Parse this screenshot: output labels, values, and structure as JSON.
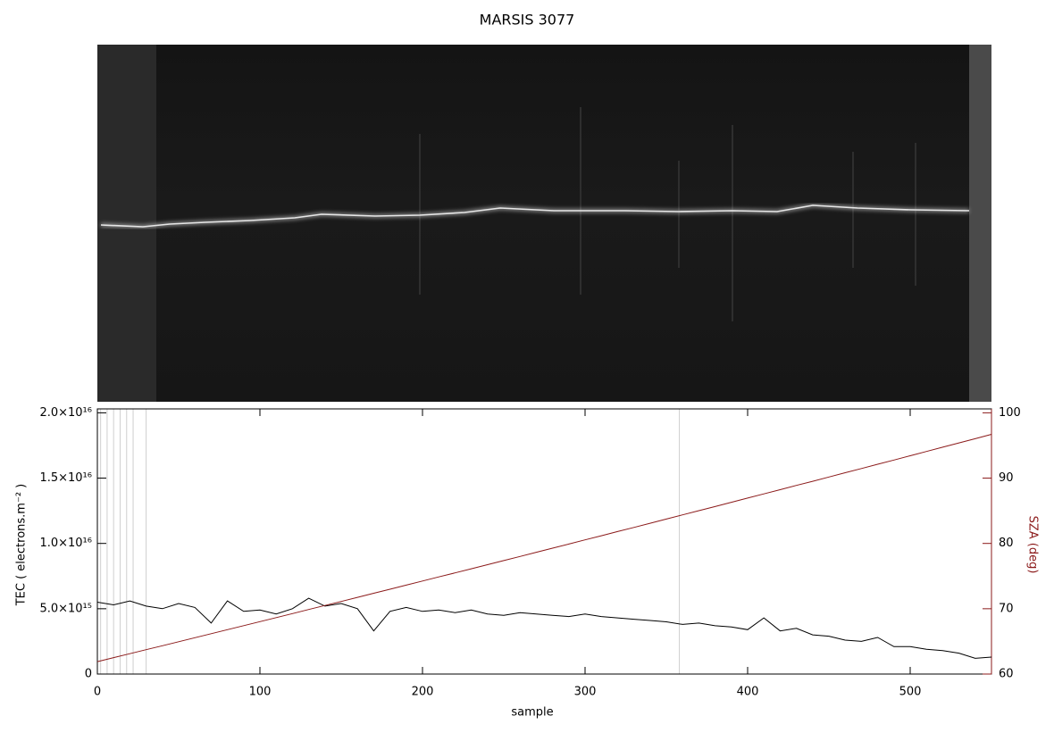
{
  "chart_data": {
    "type": "line",
    "title": "MARSIS 3077",
    "x_label": "sample",
    "y_label": "TEC ( electrons.m⁻² )",
    "y2_label": "SZA (deg)",
    "x": [
      0,
      10,
      20,
      30,
      40,
      50,
      60,
      70,
      80,
      90,
      100,
      110,
      120,
      130,
      140,
      150,
      160,
      170,
      180,
      190,
      200,
      210,
      220,
      230,
      240,
      250,
      260,
      270,
      280,
      290,
      300,
      310,
      320,
      330,
      340,
      350,
      360,
      370,
      380,
      390,
      400,
      410,
      420,
      430,
      440,
      450,
      460,
      470,
      480,
      490,
      500,
      510,
      520,
      530,
      540,
      550
    ],
    "series": [
      {
        "name": "TEC",
        "color": "#000000",
        "values": [
          5500000000000000.0,
          5300000000000000.0,
          5600000000000000.0,
          5200000000000000.0,
          5000000000000000.0,
          5400000000000000.0,
          5100000000000000.0,
          3900000000000000.0,
          5600000000000000.0,
          4800000000000000.0,
          4900000000000000.0,
          4600000000000000.0,
          5000000000000000.0,
          5800000000000000.0,
          5200000000000000.0,
          5400000000000000.0,
          5000000000000000.0,
          3300000000000000.0,
          4800000000000000.0,
          5100000000000000.0,
          4800000000000000.0,
          4900000000000000.0,
          4700000000000000.0,
          4900000000000000.0,
          4600000000000000.0,
          4500000000000000.0,
          4700000000000000.0,
          4600000000000000.0,
          4500000000000000.0,
          4400000000000000.0,
          4600000000000000.0,
          4400000000000000.0,
          4300000000000000.0,
          4200000000000000.0,
          4100000000000000.0,
          4000000000000000.0,
          3800000000000000.0,
          3900000000000000.0,
          3700000000000000.0,
          3600000000000000.0,
          3400000000000000.0,
          4300000000000000.0,
          3300000000000000.0,
          3500000000000000.0,
          3000000000000000.0,
          2900000000000000.0,
          2600000000000000.0,
          2500000000000000.0,
          2800000000000000.0,
          2100000000000000.0,
          2100000000000000.0,
          1900000000000000.0,
          1800000000000000.0,
          1600000000000000.0,
          1200000000000000.0,
          1300000000000000.0
        ]
      },
      {
        "name": "SZA",
        "color": "#8b1a1a",
        "axis": "y2",
        "values": [
          61.9,
          62.51,
          63.12,
          63.73,
          64.34,
          64.95,
          65.56,
          66.18,
          66.79,
          67.41,
          68.03,
          68.64,
          69.26,
          69.88,
          70.5,
          71.12,
          71.74,
          72.37,
          72.99,
          73.61,
          74.24,
          74.87,
          75.49,
          76.12,
          76.75,
          77.38,
          78.01,
          78.64,
          79.28,
          79.91,
          80.55,
          81.18,
          81.82,
          82.45,
          83.09,
          83.73,
          84.37,
          85.01,
          85.65,
          86.3,
          86.94,
          87.58,
          88.23,
          88.88,
          89.52,
          90.17,
          90.82,
          91.47,
          92.12,
          92.77,
          93.43,
          94.08,
          94.73,
          95.39,
          96.04,
          96.7
        ]
      }
    ],
    "vlines": [
      2,
      6,
      10,
      14,
      18,
      22,
      30,
      358
    ],
    "xlim": [
      0,
      550
    ],
    "xticks": [
      0,
      100,
      200,
      300,
      400,
      500
    ],
    "ylim": [
      0,
      2.03e+16
    ],
    "yticks": [
      0,
      {
        "value": 5000000000000000.0,
        "label": "5.0×10¹⁵"
      },
      {
        "value": 1e+16,
        "label": "1.0×10¹⁶"
      },
      {
        "value": 1.5e+16,
        "label": "1.5×10¹⁶"
      },
      {
        "value": 2e+16,
        "label": "2.0×10¹⁶"
      }
    ],
    "y2lim": [
      60,
      100.6
    ],
    "y2ticks": [
      60,
      70,
      80,
      90,
      100
    ],
    "y2_color": "#8b1a1a"
  }
}
